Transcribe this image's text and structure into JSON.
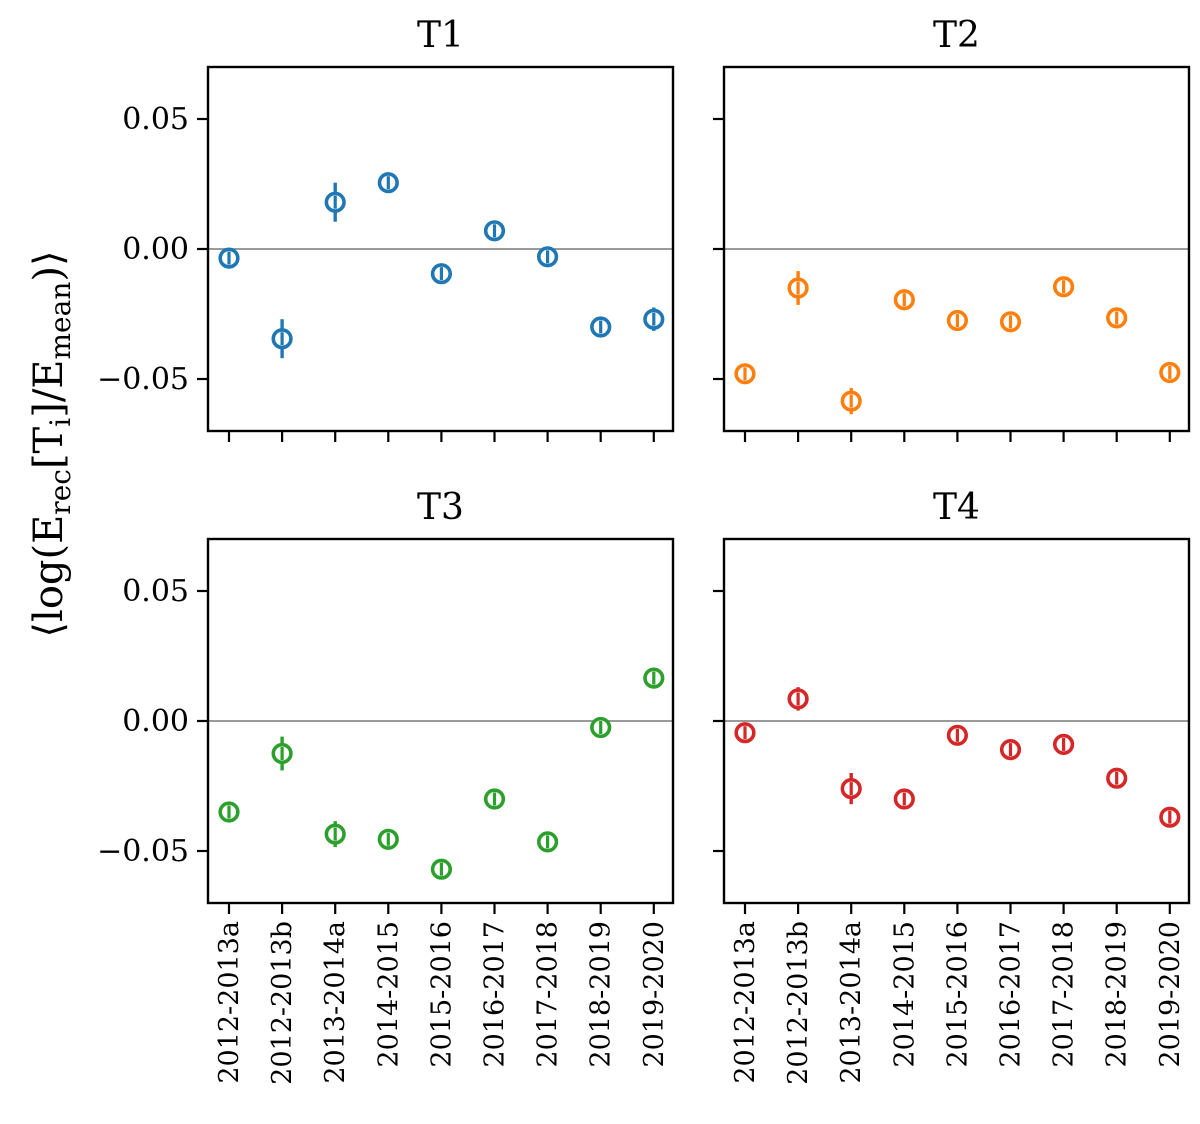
{
  "chart_data": {
    "type": "scatter",
    "ylabel": "⟨log(E_rec[T_i]/E_mean)⟩",
    "ylabel_parts": {
      "open": "⟨log(E",
      "sub_rec": "rec",
      "mid1": "[T",
      "sub_i": "i",
      "mid2": "]/E",
      "sub_mean": "mean",
      "close": ")⟩"
    },
    "categories": [
      "2012-2013a",
      "2012-2013b",
      "2013-2014a",
      "2014-2015",
      "2015-2016",
      "2016-2017",
      "2017-2018",
      "2018-2019",
      "2019-2020"
    ],
    "ylim": [
      -0.07,
      0.07
    ],
    "yticks": [
      -0.05,
      0.0,
      0.05
    ],
    "ytick_labels": [
      "−0.05",
      "0.00",
      "0.05"
    ],
    "reference_line": 0.0,
    "panels": [
      {
        "title": "T1",
        "color": "#1f77b4",
        "values": [
          -0.0035,
          -0.0345,
          0.018,
          0.0255,
          -0.0095,
          0.007,
          -0.003,
          -0.03,
          -0.027
        ],
        "errors": [
          0.0022,
          0.0075,
          0.0075,
          0.0025,
          0.0025,
          0.0025,
          0.0025,
          0.0025,
          0.0045
        ]
      },
      {
        "title": "T2",
        "color": "#ff7f0e",
        "values": [
          -0.048,
          -0.015,
          -0.0585,
          -0.0195,
          -0.0275,
          -0.028,
          -0.0145,
          -0.0265,
          -0.0475
        ],
        "errors": [
          0.0025,
          0.0065,
          0.005,
          0.0025,
          0.0025,
          0.0025,
          0.0025,
          0.0025,
          0.0025
        ]
      },
      {
        "title": "T3",
        "color": "#2ca02c",
        "values": [
          -0.035,
          -0.0125,
          -0.0435,
          -0.0455,
          -0.057,
          -0.03,
          -0.0465,
          -0.0025,
          0.0165
        ],
        "errors": [
          0.0025,
          0.0065,
          0.005,
          0.0025,
          0.0025,
          0.0025,
          0.0025,
          0.0025,
          0.0025
        ]
      },
      {
        "title": "T4",
        "color": "#d62728",
        "values": [
          -0.0045,
          0.0085,
          -0.026,
          -0.03,
          -0.0055,
          -0.011,
          -0.009,
          -0.022,
          -0.037
        ],
        "errors": [
          0.0025,
          0.0045,
          0.006,
          0.0025,
          0.0025,
          0.0025,
          0.0025,
          0.0025,
          0.0025
        ]
      }
    ]
  }
}
